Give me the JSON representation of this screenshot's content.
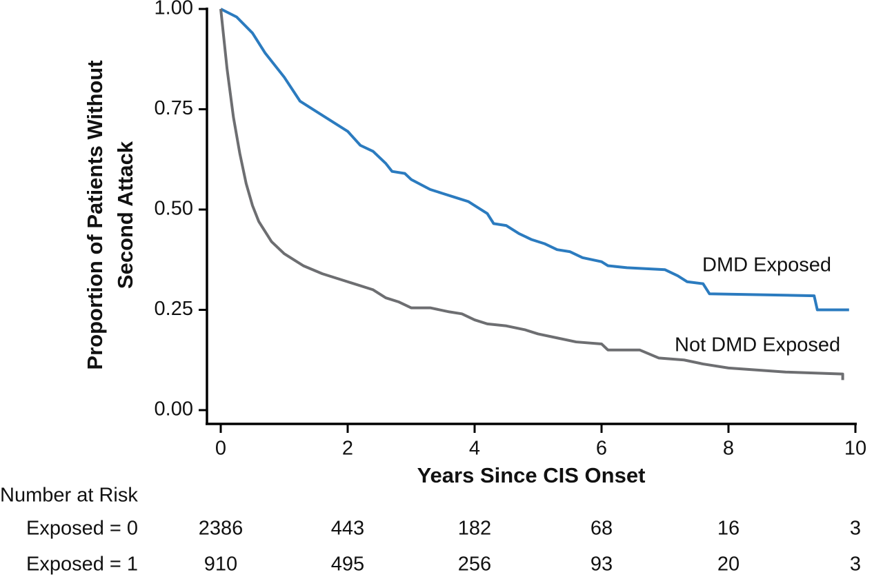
{
  "chart_data": {
    "type": "line",
    "y_label": [
      "Proportion of Patients Without",
      "Second Attack"
    ],
    "x_label": "Years Since CIS Onset",
    "xlim": [
      0,
      10
    ],
    "xticks": [
      0,
      2,
      4,
      6,
      8,
      10
    ],
    "ylim": [
      0,
      1
    ],
    "yticks": [
      {
        "value": 0,
        "label": "0.00"
      },
      {
        "value": 0.25,
        "label": "0.25"
      },
      {
        "value": 0.5,
        "label": "0.50"
      },
      {
        "value": 0.75,
        "label": "0.75"
      },
      {
        "value": 1,
        "label": "1.00"
      }
    ],
    "series": [
      {
        "name": "DMD Exposed",
        "color": "#2b7bbf",
        "x": [
          0,
          0.25,
          0.5,
          0.7,
          1.0,
          1.25,
          1.5,
          2.0,
          2.2,
          2.4,
          2.6,
          2.7,
          2.9,
          3.0,
          3.3,
          3.5,
          3.7,
          3.9,
          4.0,
          4.2,
          4.3,
          4.5,
          4.7,
          4.9,
          5.1,
          5.3,
          5.5,
          5.7,
          6.0,
          6.1,
          6.4,
          7.0,
          7.2,
          7.35,
          7.6,
          7.7,
          9.35,
          9.4,
          9.9
        ],
        "values": [
          1.0,
          0.98,
          0.94,
          0.89,
          0.83,
          0.77,
          0.745,
          0.695,
          0.66,
          0.645,
          0.615,
          0.595,
          0.59,
          0.575,
          0.55,
          0.54,
          0.53,
          0.52,
          0.51,
          0.49,
          0.465,
          0.46,
          0.44,
          0.425,
          0.415,
          0.4,
          0.395,
          0.38,
          0.37,
          0.36,
          0.355,
          0.35,
          0.335,
          0.32,
          0.315,
          0.29,
          0.285,
          0.25,
          0.25
        ]
      },
      {
        "name": "Not DMD Exposed",
        "color": "#6d6e71",
        "x": [
          0,
          0.1,
          0.2,
          0.3,
          0.4,
          0.5,
          0.6,
          0.8,
          1.0,
          1.3,
          1.6,
          2.0,
          2.4,
          2.6,
          2.8,
          3.0,
          3.3,
          3.6,
          3.8,
          4.0,
          4.2,
          4.5,
          4.8,
          5.0,
          5.3,
          5.6,
          6.0,
          6.1,
          6.6,
          6.9,
          7.3,
          7.6,
          8.0,
          8.9,
          9.8,
          9.8
        ],
        "values": [
          1.0,
          0.85,
          0.73,
          0.64,
          0.565,
          0.51,
          0.47,
          0.42,
          0.39,
          0.36,
          0.34,
          0.32,
          0.3,
          0.28,
          0.27,
          0.255,
          0.255,
          0.245,
          0.24,
          0.225,
          0.215,
          0.21,
          0.2,
          0.19,
          0.18,
          0.17,
          0.165,
          0.15,
          0.15,
          0.13,
          0.125,
          0.115,
          0.105,
          0.095,
          0.09,
          0.075
        ]
      }
    ],
    "risk_table": {
      "title": "Number at Risk",
      "rows": [
        {
          "label": "Exposed = 0",
          "values": [
            2386,
            443,
            182,
            68,
            16,
            3
          ]
        },
        {
          "label": "Exposed = 1",
          "values": [
            910,
            495,
            256,
            93,
            20,
            3
          ]
        }
      ]
    }
  }
}
